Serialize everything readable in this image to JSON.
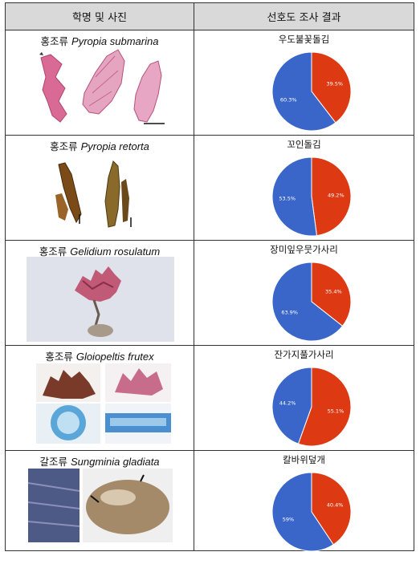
{
  "header": {
    "col1": "학명 및 사진",
    "col2": "선호도 조사 결과"
  },
  "rows": [
    {
      "group": "홍조류",
      "sci": "Pyropia submarina",
      "korean": "우도불꽃돌김",
      "chart_data": {
        "type": "pie",
        "values": [
          39.5,
          60.3
        ],
        "labels": [
          "39.5%",
          "60.3%"
        ],
        "colors": [
          "#dd3a14",
          "#3a66c9"
        ]
      }
    },
    {
      "group": "홍조류",
      "sci": "Pyropia retorta",
      "korean": "꼬인돌김",
      "chart_data": {
        "type": "pie",
        "values": [
          49.2,
          53.5
        ],
        "labels": [
          "49.2%",
          "53.5%"
        ],
        "colors": [
          "#dd3a14",
          "#3a66c9"
        ]
      }
    },
    {
      "group": "홍조류",
      "sci": "Gelidium rosulatum",
      "korean": "장미잎우뭇가사리",
      "chart_data": {
        "type": "pie",
        "values": [
          35.4,
          63.9
        ],
        "labels": [
          "35.4%",
          "63.9%"
        ],
        "colors": [
          "#dd3a14",
          "#3a66c9"
        ]
      }
    },
    {
      "group": "홍조류",
      "sci": "Gloiopeltis frutex",
      "korean": "잔가지풀가사리",
      "chart_data": {
        "type": "pie",
        "values": [
          55.1,
          44.2
        ],
        "labels": [
          "55.1%",
          "44.2%"
        ],
        "colors": [
          "#dd3a14",
          "#3a66c9"
        ]
      }
    },
    {
      "group": "갈조류",
      "sci": "Sungminia gladiata",
      "korean": "칼바위덮개",
      "chart_data": {
        "type": "pie",
        "values": [
          40.4,
          59
        ],
        "labels": [
          "40.4%",
          "59%"
        ],
        "colors": [
          "#dd3a14",
          "#3a66c9"
        ]
      }
    }
  ]
}
